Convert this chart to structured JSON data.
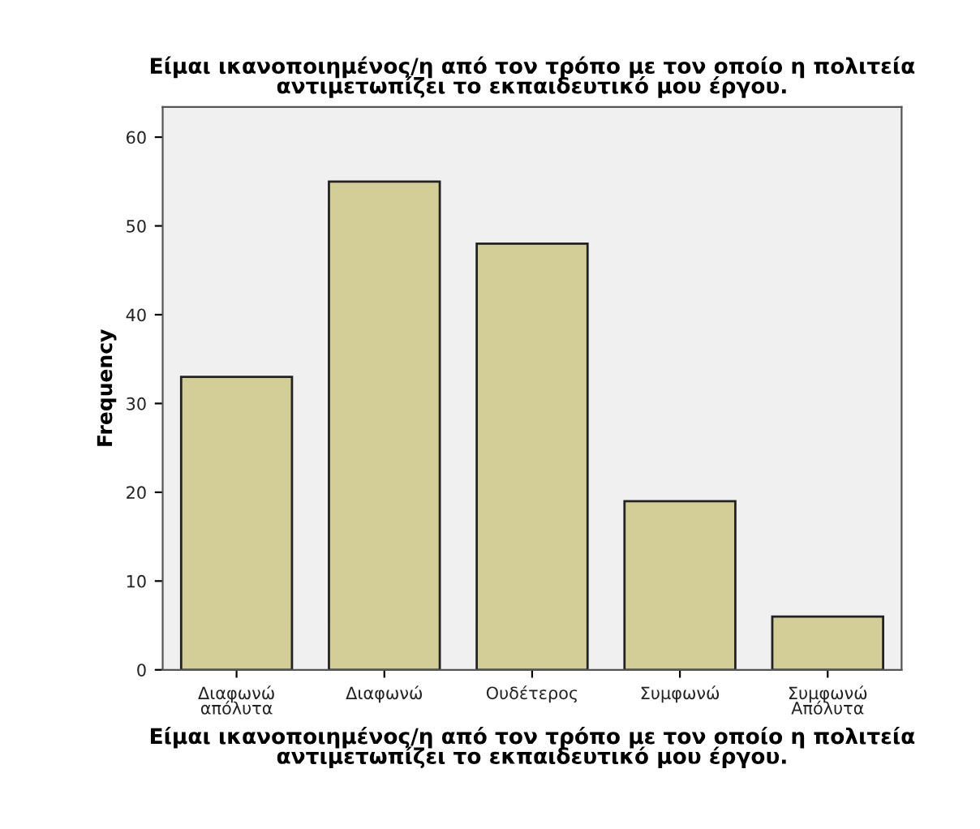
{
  "chart_data": {
    "type": "bar",
    "title": "Είμαι ικανοποιημένος/η από τον τρόπο με τον οποίο η πολιτεία\nαντιμετωπίζει το εκπαιδευτικό μου έργου.",
    "xlabel": "Είμαι ικανοποιημένος/η από τον τρόπο με τον οποίο η πολιτεία\nαντιμετωπίζει το εκπαιδευτικό μου έργου.",
    "ylabel": "Frequency",
    "categories": [
      "Διαφωνώ\nαπόλυτα",
      "Διαφωνώ",
      "Ουδέτερος",
      "Συμφωνώ",
      "Συμφωνώ\nΑπόλυτα"
    ],
    "values": [
      33,
      55,
      48,
      19,
      6
    ],
    "color": "#d3ce97",
    "ylim": [
      0,
      63.4
    ],
    "yticks": [
      0,
      10,
      20,
      30,
      40,
      50,
      60
    ],
    "grid": false
  }
}
